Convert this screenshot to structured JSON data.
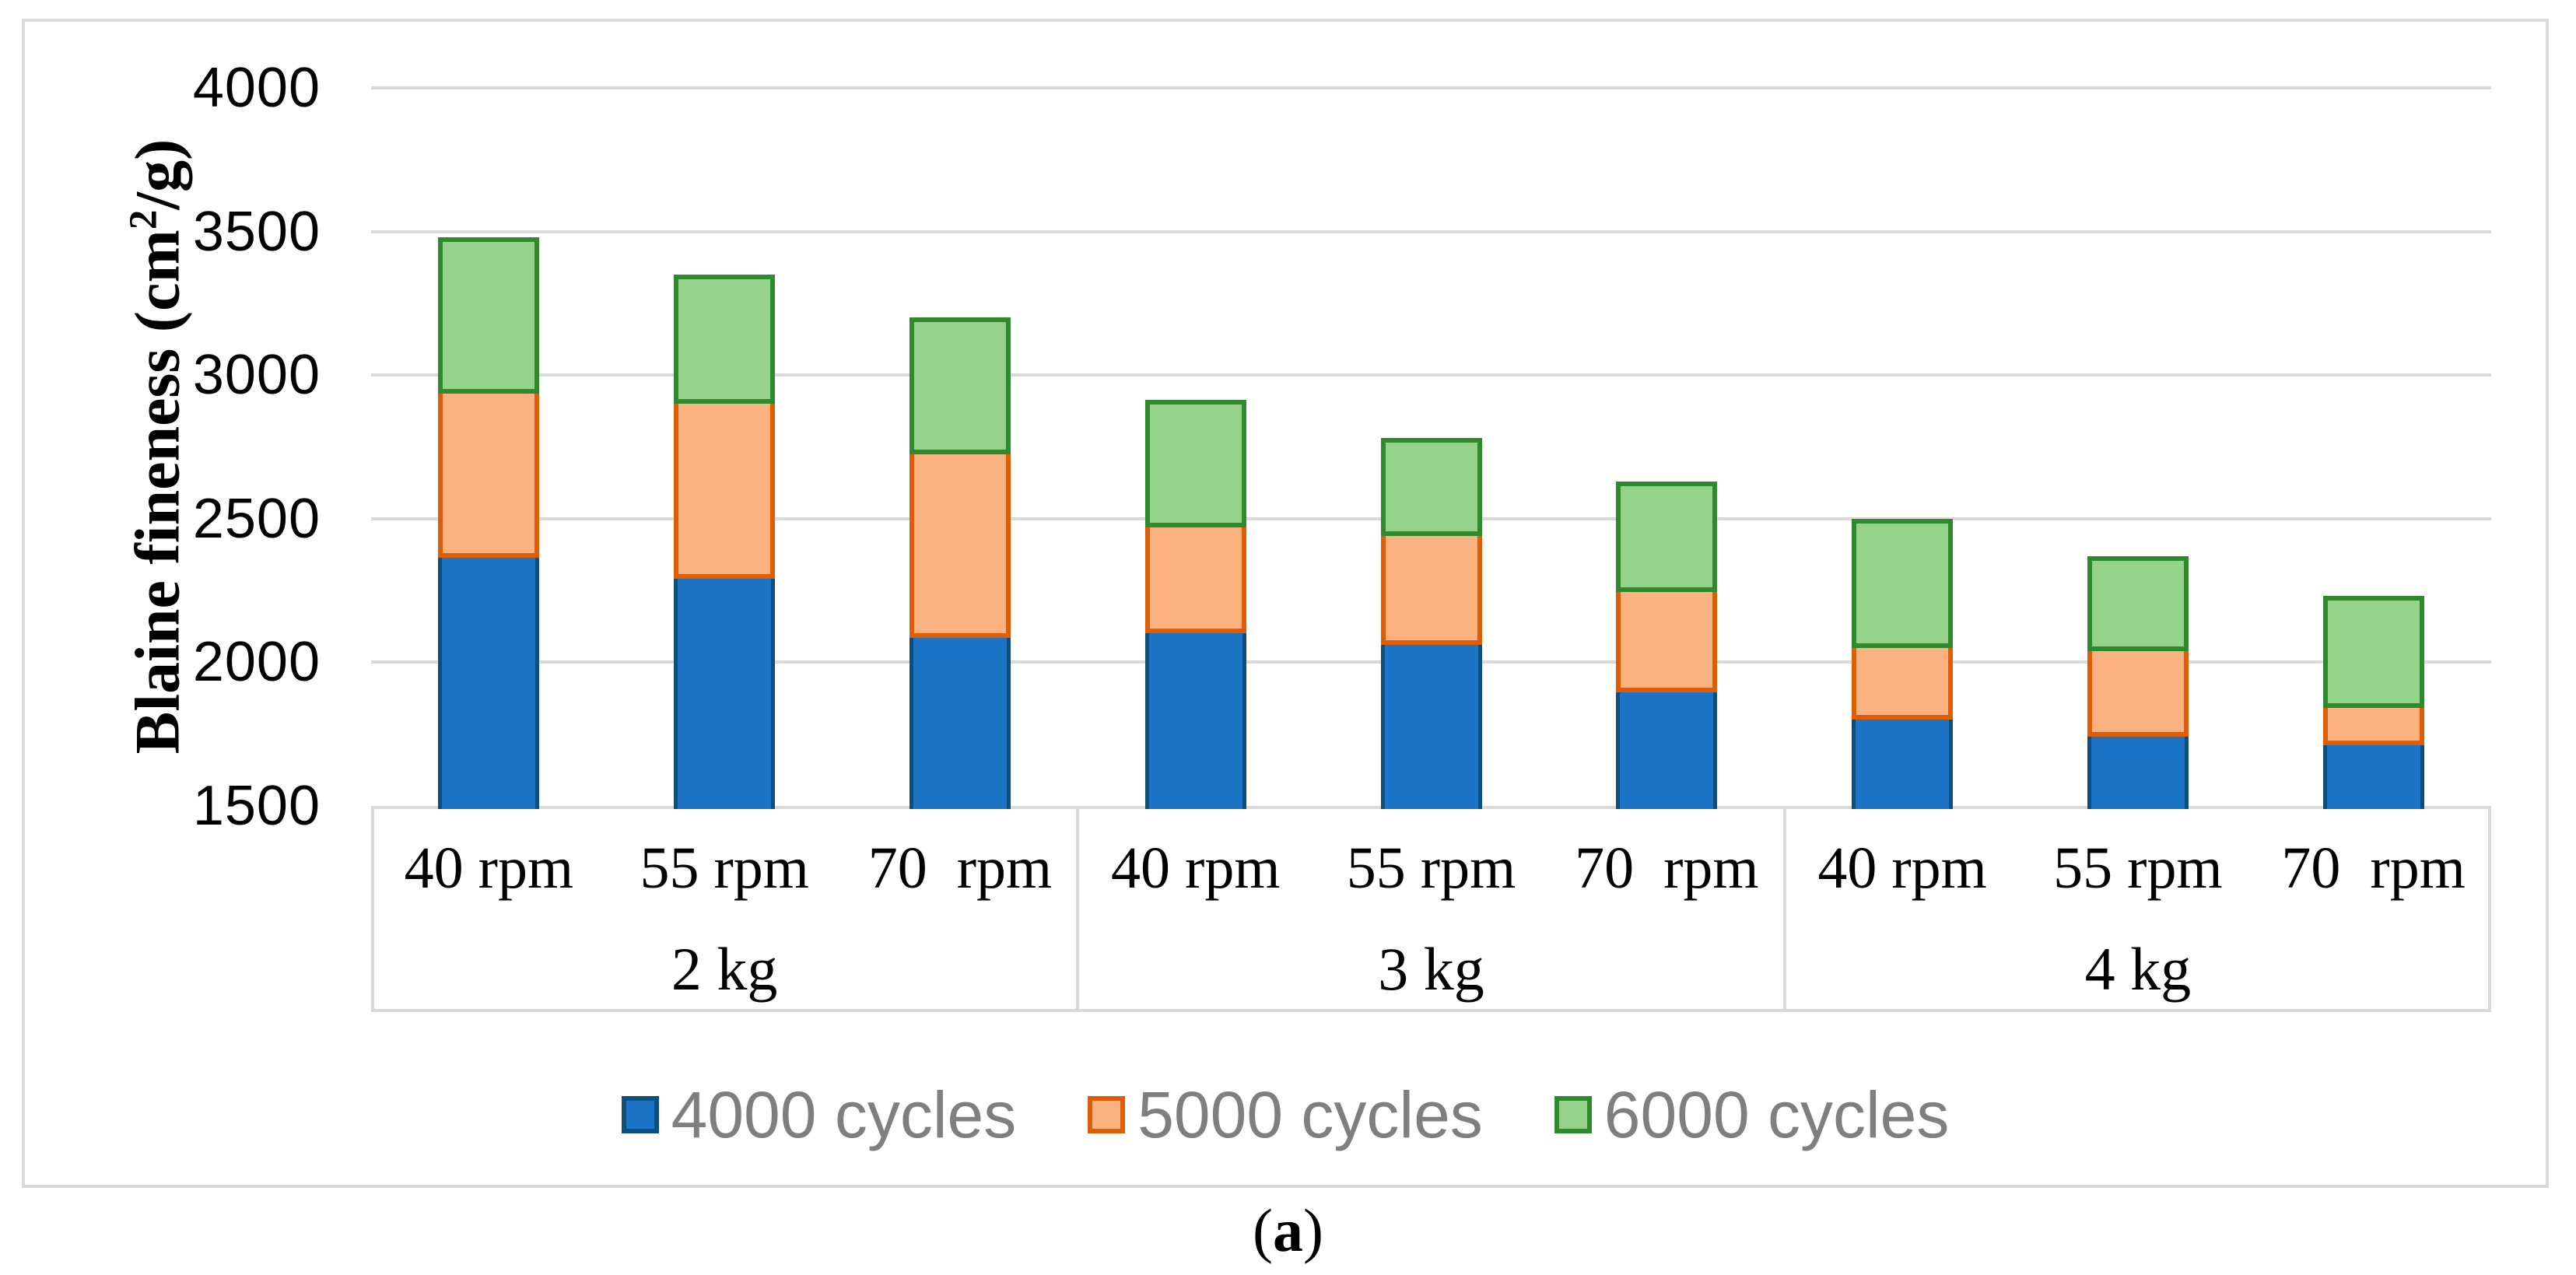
{
  "figure": {
    "y_axis_title": {
      "pre": "Blaine fineness (cm",
      "sup": "2",
      "post": "/g)"
    },
    "caption": {
      "open": "(",
      "letter": "a",
      "close": ")"
    }
  },
  "chart_data": {
    "type": "bar",
    "stacked": true,
    "orientation": "vertical",
    "title": "",
    "xlabel": "",
    "ylabel": "Blaine fineness (cm²/g)",
    "ylim": [
      1500,
      4000
    ],
    "yticks": [
      1500,
      2000,
      2500,
      3000,
      3500,
      4000
    ],
    "grid": true,
    "legend_position": "bottom",
    "baseline": 1500,
    "groups": [
      {
        "label": "2 kg",
        "categories": [
          "40 rpm",
          "55 rpm",
          "70  rpm"
        ]
      },
      {
        "label": "3 kg",
        "categories": [
          "40 rpm",
          "55 rpm",
          "70  rpm"
        ]
      },
      {
        "label": "4 kg",
        "categories": [
          "40 rpm",
          "55 rpm",
          "70  rpm"
        ]
      }
    ],
    "values_note": "each series value is the cumulative stack top (Blaine fineness reading at that cycle count); bars rise from the 1500 baseline",
    "series": [
      {
        "name": "4000 cycles",
        "fill": "#1B74C5",
        "border": "#0D4E7C",
        "values": [
          2365,
          2290,
          2085,
          2100,
          2060,
          1895,
          1800,
          1740,
          1710
        ]
      },
      {
        "name": "5000 cycles",
        "fill": "#FBB180",
        "border": "#DE5D05",
        "values": [
          2935,
          2900,
          2725,
          2470,
          2440,
          2245,
          2050,
          2040,
          1840
        ]
      },
      {
        "name": "6000 cycles",
        "fill": "#95D28A",
        "border": "#2F8A2E",
        "values": [
          3480,
          3350,
          3200,
          2915,
          2780,
          2630,
          2500,
          2370,
          2230
        ]
      }
    ]
  },
  "colors": {
    "gridline": "#D9D9D9",
    "figure_border": "#D9D9D9",
    "legend_text": "#7F7F7F",
    "axis_text": "#000000",
    "background": "#FFFFFF"
  }
}
